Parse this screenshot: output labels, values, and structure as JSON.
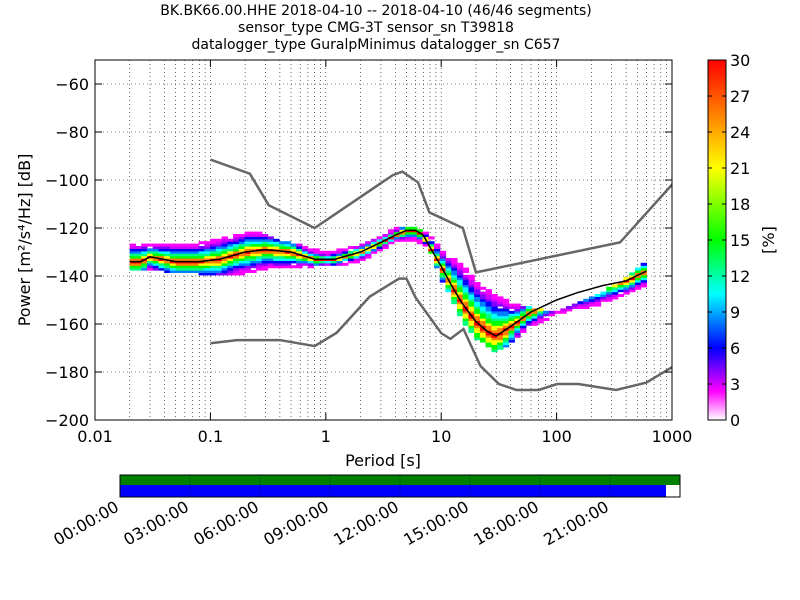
{
  "header": {
    "line1": "BK.BK66.00.HHE   2018-04-10 -- 2018-04-10  (46/46 segments)",
    "line2": "sensor_type CMG-3T sensor_sn T39818",
    "line3": "datalogger_type GuralpMinimus datalogger_sn C657"
  },
  "chart_data": {
    "type": "heatmap",
    "title": "BK.BK66.00.HHE   2018-04-10 -- 2018-04-10  (46/46 segments)",
    "xlabel": "Period [s]",
    "ylabel": "Power [m²/s⁴/Hz] [dB]",
    "x_scale": "log",
    "xlim": [
      0.01,
      1000
    ],
    "ylim": [
      -200,
      -50
    ],
    "x_ticks": [
      "0.01",
      "0.1",
      "1",
      "10",
      "100",
      "1000"
    ],
    "y_ticks": [
      "−60",
      "−80",
      "−100",
      "−120",
      "−140",
      "−160",
      "−180",
      "−200"
    ],
    "colorbar": {
      "label": "[%]",
      "range": [
        0,
        30
      ],
      "ticks": [
        "0",
        "3",
        "6",
        "9",
        "12",
        "15",
        "18",
        "21",
        "24",
        "27",
        "30"
      ]
    },
    "nhnm": {
      "name": "NHNM",
      "color": "#666666",
      "x": [
        0.1,
        0.22,
        0.32,
        0.8,
        3.8,
        4.6,
        6.3,
        7.9,
        15.4,
        20,
        354.8,
        10000
      ],
      "y": [
        -91.5,
        -97.4,
        -110.5,
        -120,
        -98,
        -96.5,
        -101,
        -113.5,
        -120,
        -138.5,
        -126,
        -48.5
      ]
    },
    "nlnm": {
      "name": "NLNM",
      "color": "#666666",
      "x": [
        0.1,
        0.17,
        0.4,
        0.8,
        1.24,
        2.4,
        4.3,
        5,
        6,
        10,
        12,
        15.6,
        21.9,
        31.6,
        45,
        70,
        101,
        154,
        328,
        600,
        1000
      ],
      "y": [
        -168,
        -166.7,
        -166.7,
        -169.2,
        -163.7,
        -148.6,
        -141.1,
        -141.1,
        -149,
        -163.8,
        -166.2,
        -162.1,
        -177.5,
        -185,
        -187.5,
        -187.5,
        -185,
        -185,
        -187.5,
        -184.4,
        -178
      ]
    },
    "mode_line": {
      "name": "mode",
      "color": "#000000",
      "x": [
        0.02,
        0.025,
        0.03,
        0.05,
        0.08,
        0.12,
        0.2,
        0.3,
        0.5,
        0.8,
        1.2,
        2,
        3,
        4,
        5,
        6,
        7,
        8,
        10,
        12,
        15,
        20,
        25,
        30,
        40,
        60,
        100,
        150,
        250,
        400,
        600
      ],
      "y": [
        -134,
        -134,
        -132,
        -134,
        -134,
        -133,
        -130,
        -129,
        -130,
        -133,
        -133,
        -130,
        -126,
        -123,
        -121,
        -121,
        -123,
        -128,
        -136,
        -143,
        -151,
        -159,
        -163,
        -165,
        -161,
        -155,
        -150,
        -147,
        -144,
        -142,
        -138
      ]
    },
    "upper_spread": {
      "x": [
        0.04,
        0.08,
        0.15,
        0.25,
        0.4,
        0.6,
        1,
        2,
        4,
        6,
        8,
        10,
        15,
        20,
        30,
        40,
        60,
        100,
        200,
        400,
        600
      ],
      "y": [
        -127,
        -127,
        -124,
        -122,
        -126,
        -128,
        -131,
        -128,
        -121,
        -120,
        -124,
        -130,
        -136,
        -143,
        -149,
        -152,
        -154,
        -156,
        -150,
        -142,
        -135
      ]
    },
    "lower_spread": {
      "x": [
        0.02,
        0.04,
        0.08,
        0.12,
        0.2,
        0.3,
        0.5,
        0.8,
        1.2,
        2,
        4,
        6,
        8,
        10,
        15,
        20,
        25,
        30,
        40,
        60,
        100,
        200,
        400,
        600
      ],
      "y": [
        -136,
        -137,
        -138,
        -139,
        -138,
        -136,
        -136,
        -135,
        -135,
        -133,
        -125,
        -124,
        -128,
        -140,
        -157,
        -165,
        -168,
        -171,
        -167,
        -160,
        -155,
        -152,
        -147,
        -143
      ]
    },
    "timeline": {
      "start_label": "00:00:00",
      "tick_labels": [
        "00:00:00",
        "03:00:00",
        "06:00:00",
        "09:00:00",
        "12:00:00",
        "15:00:00",
        "18:00:00",
        "21:00:00"
      ],
      "coverage_fraction": 0.975,
      "data_color": "#0000ff",
      "segments_color": "#008000"
    }
  }
}
